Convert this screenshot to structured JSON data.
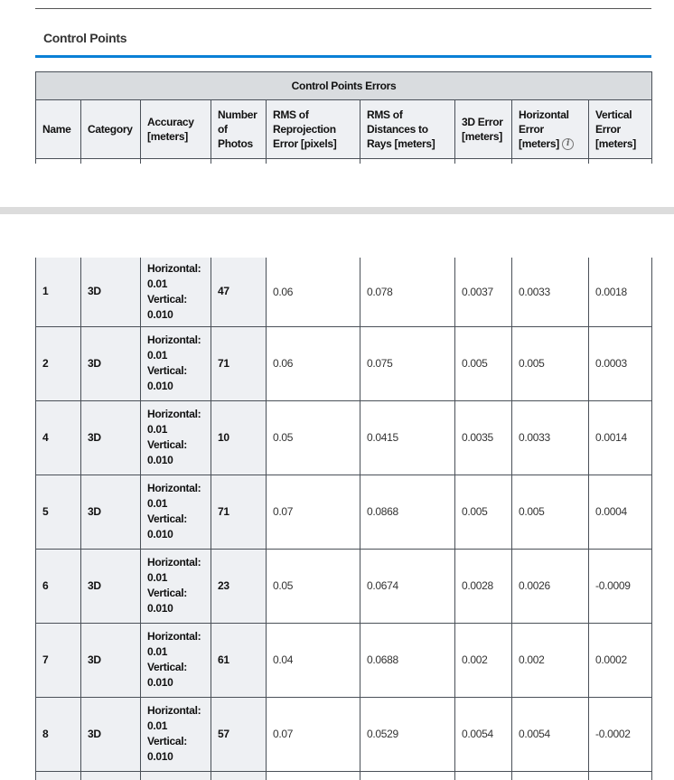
{
  "section_title": "Control Points",
  "table": {
    "caption": "Control Points Errors",
    "headers": [
      "Name",
      "Category",
      "Accuracy [meters]",
      "Number of Photos",
      "RMS of Reprojection Error [pixels]",
      "RMS of Distances to Rays [meters]",
      "3D Error [meters]",
      "Horizontal Error [meters]",
      "Vertical Error [meters]"
    ],
    "info_icon": "info-icon",
    "rows": [
      {
        "name": "1",
        "category": "3D",
        "acc_h_label": "Horizontal:",
        "acc_h": "0.01",
        "acc_v_label": "Vertical:",
        "acc_v": "0.010",
        "photos": "47",
        "rms_reproj": "0.06",
        "rms_rays": "0.078",
        "err3d": "0.0037",
        "err_h": "0.0033",
        "err_v": "0.0018"
      },
      {
        "name": "2",
        "category": "3D",
        "acc_h_label": "Horizontal:",
        "acc_h": "0.01",
        "acc_v_label": "Vertical:",
        "acc_v": "0.010",
        "photos": "71",
        "rms_reproj": "0.06",
        "rms_rays": "0.075",
        "err3d": "0.005",
        "err_h": "0.005",
        "err_v": "0.0003"
      },
      {
        "name": "4",
        "category": "3D",
        "acc_h_label": "Horizontal:",
        "acc_h": "0.01",
        "acc_v_label": "Vertical:",
        "acc_v": "0.010",
        "photos": "10",
        "rms_reproj": "0.05",
        "rms_rays": "0.0415",
        "err3d": "0.0035",
        "err_h": "0.0033",
        "err_v": "0.0014"
      },
      {
        "name": "5",
        "category": "3D",
        "acc_h_label": "Horizontal:",
        "acc_h": "0.01",
        "acc_v_label": "Vertical:",
        "acc_v": "0.010",
        "photos": "71",
        "rms_reproj": "0.07",
        "rms_rays": "0.0868",
        "err3d": "0.005",
        "err_h": "0.005",
        "err_v": "0.0004"
      },
      {
        "name": "6",
        "category": "3D",
        "acc_h_label": "Horizontal:",
        "acc_h": "0.01",
        "acc_v_label": "Vertical:",
        "acc_v": "0.010",
        "photos": "23",
        "rms_reproj": "0.05",
        "rms_rays": "0.0674",
        "err3d": "0.0028",
        "err_h": "0.0026",
        "err_v": "-0.0009"
      },
      {
        "name": "7",
        "category": "3D",
        "acc_h_label": "Horizontal:",
        "acc_h": "0.01",
        "acc_v_label": "Vertical:",
        "acc_v": "0.010",
        "photos": "61",
        "rms_reproj": "0.04",
        "rms_rays": "0.0688",
        "err3d": "0.002",
        "err_h": "0.002",
        "err_v": "0.0002"
      },
      {
        "name": "8",
        "category": "3D",
        "acc_h_label": "Horizontal:",
        "acc_h": "0.01",
        "acc_v_label": "Vertical:",
        "acc_v": "0.010",
        "photos": "57",
        "rms_reproj": "0.07",
        "rms_rays": "0.0529",
        "err3d": "0.0054",
        "err_h": "0.0054",
        "err_v": "-0.0002"
      }
    ]
  }
}
